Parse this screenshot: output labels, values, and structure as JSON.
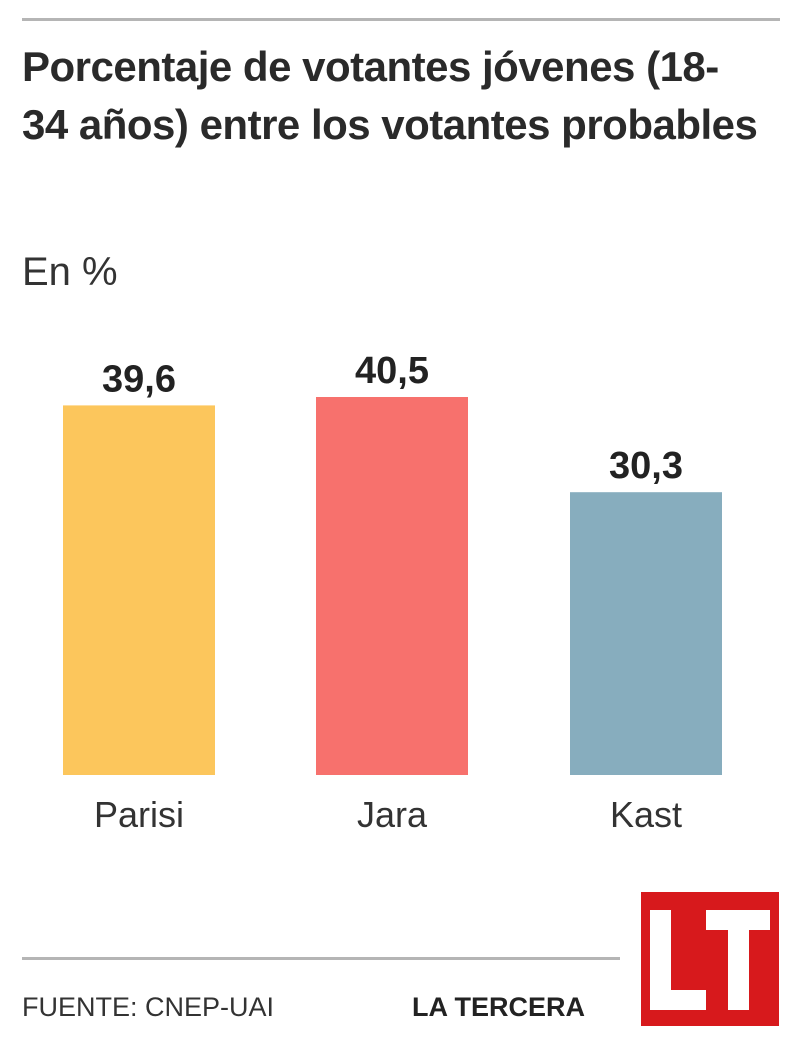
{
  "header": {
    "title": "Porcentaje de votantes jóvenes (18-34 años) entre los votantes probables",
    "subtitle": "En %"
  },
  "footer": {
    "source": "FUENTE: CNEP-UAI",
    "brand": "LA TERCERA",
    "logo_text": "LT"
  },
  "colors": {
    "parisi": "#fcc65c",
    "jara": "#f7716d",
    "kast": "#87adbe",
    "logo": "#d7191c"
  },
  "chart_data": {
    "type": "bar",
    "title": "Porcentaje de votantes jóvenes (18-34 años) entre los votantes probables",
    "ylabel": "En %",
    "categories": [
      "Parisi",
      "Jara",
      "Kast"
    ],
    "values": [
      39.6,
      40.5,
      30.3
    ],
    "value_labels": [
      "39,6",
      "40,5",
      "30,3"
    ],
    "colors": [
      "#fcc65c",
      "#f7716d",
      "#87adbe"
    ],
    "ylim": [
      0,
      40.5
    ],
    "grid": false,
    "legend": "none"
  }
}
